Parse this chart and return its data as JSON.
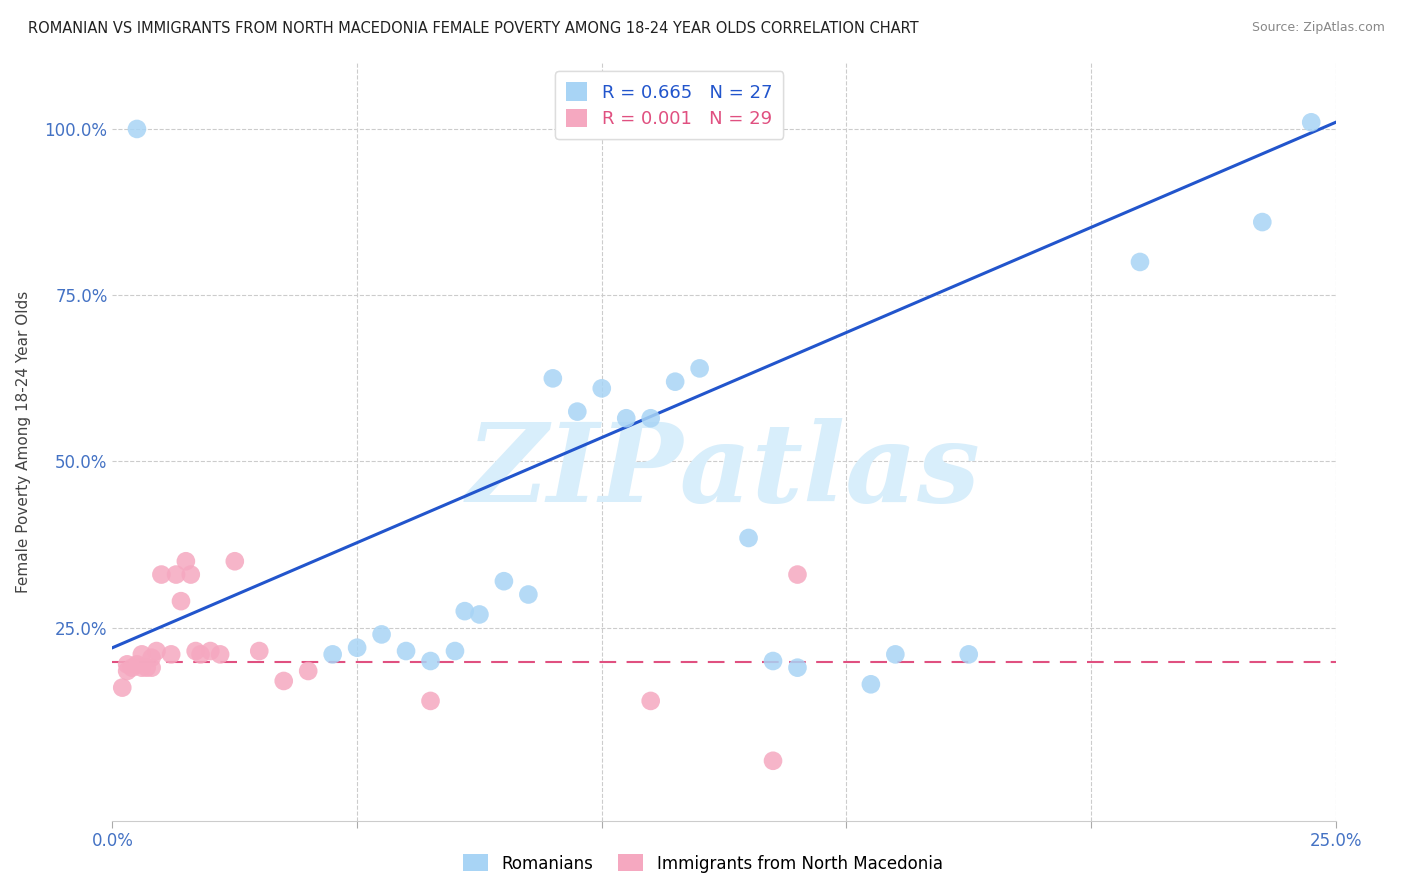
{
  "title": "ROMANIAN VS IMMIGRANTS FROM NORTH MACEDONIA FEMALE POVERTY AMONG 18-24 YEAR OLDS CORRELATION CHART",
  "source": "Source: ZipAtlas.com",
  "ylabel": "Female Poverty Among 18-24 Year Olds",
  "xlim": [
    0.0,
    0.25
  ],
  "ylim": [
    -0.04,
    1.1
  ],
  "blue_scatter_x": [
    0.005,
    0.045,
    0.05,
    0.055,
    0.06,
    0.065,
    0.07,
    0.072,
    0.075,
    0.08,
    0.085,
    0.09,
    0.095,
    0.1,
    0.105,
    0.11,
    0.115,
    0.12,
    0.13,
    0.135,
    0.14,
    0.155,
    0.16,
    0.175,
    0.21,
    0.235,
    0.245
  ],
  "blue_scatter_y": [
    1.0,
    0.21,
    0.22,
    0.24,
    0.215,
    0.2,
    0.215,
    0.275,
    0.27,
    0.32,
    0.3,
    0.625,
    0.575,
    0.61,
    0.565,
    0.565,
    0.62,
    0.64,
    0.385,
    0.2,
    0.19,
    0.165,
    0.21,
    0.21,
    0.8,
    0.86,
    1.01
  ],
  "pink_scatter_x": [
    0.002,
    0.003,
    0.003,
    0.004,
    0.005,
    0.006,
    0.006,
    0.007,
    0.008,
    0.008,
    0.009,
    0.01,
    0.012,
    0.013,
    0.014,
    0.015,
    0.016,
    0.017,
    0.018,
    0.02,
    0.022,
    0.025,
    0.03,
    0.035,
    0.04,
    0.065,
    0.11,
    0.135,
    0.14
  ],
  "pink_scatter_y": [
    0.16,
    0.195,
    0.185,
    0.19,
    0.195,
    0.21,
    0.19,
    0.19,
    0.205,
    0.19,
    0.215,
    0.33,
    0.21,
    0.33,
    0.29,
    0.35,
    0.33,
    0.215,
    0.21,
    0.215,
    0.21,
    0.35,
    0.215,
    0.17,
    0.185,
    0.14,
    0.14,
    0.05,
    0.33
  ],
  "blue_line_x": [
    0.0,
    0.25
  ],
  "blue_line_y": [
    0.22,
    1.01
  ],
  "pink_line_x": [
    0.0,
    0.25
  ],
  "pink_line_y": [
    0.198,
    0.198
  ],
  "blue_dot_color": "#A8D4F5",
  "pink_dot_color": "#F5A8C0",
  "blue_line_color": "#2255CC",
  "pink_line_color": "#E05080",
  "grid_color": "#CCCCCC",
  "background_color": "#FFFFFF",
  "watermark": "ZIPatlas",
  "watermark_color": "#D8EEFB",
  "legend_r1": "R = 0.665   N = 27",
  "legend_r2": "R = 0.001   N = 29",
  "legend_label1": "Romanians",
  "legend_label2": "Immigrants from North Macedonia"
}
